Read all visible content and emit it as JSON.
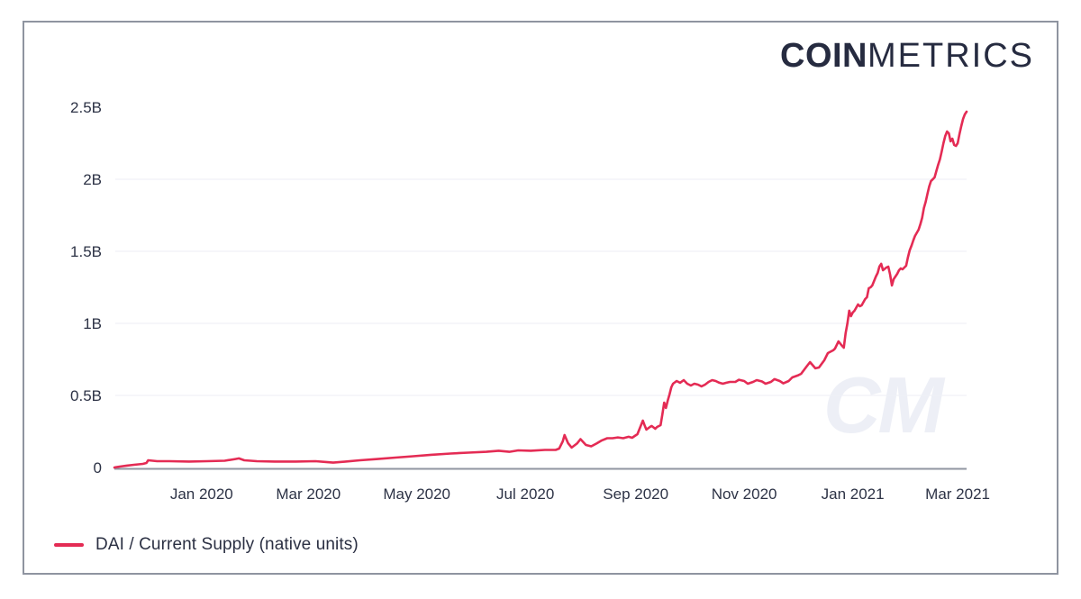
{
  "header": {
    "logo": {
      "coin": "COIN",
      "metrics": "METRICS"
    }
  },
  "watermark": {
    "text": "CM"
  },
  "legend": {
    "items": [
      {
        "label": "DAI / Current Supply (native units)",
        "color": "#e42b54"
      }
    ]
  },
  "colors": {
    "line": "#e42b54",
    "gridline": "#f0f1f6",
    "axis": "#9096a1",
    "tick_text": "#2d3346",
    "logo_text": "#262b40",
    "watermark": "#edeff6",
    "border": "#8f94a0"
  },
  "chart_data": {
    "type": "line",
    "title": "",
    "legend_position": "bottom-left",
    "grid": "horizontal-only",
    "x_axis": {
      "domain": [
        "2019-11-13",
        "2021-03-06"
      ],
      "ticks": [
        {
          "label": "Jan 2020",
          "date": "2020-01-01"
        },
        {
          "label": "Mar 2020",
          "date": "2020-03-01"
        },
        {
          "label": "May 2020",
          "date": "2020-05-01"
        },
        {
          "label": "Jul 2020",
          "date": "2020-07-01"
        },
        {
          "label": "Sep 2020",
          "date": "2020-09-01"
        },
        {
          "label": "Nov 2020",
          "date": "2020-11-01"
        },
        {
          "label": "Jan 2021",
          "date": "2021-01-01"
        },
        {
          "label": "Mar 2021",
          "date": "2021-03-01"
        }
      ]
    },
    "y_axis": {
      "domain": [
        0,
        2.5
      ],
      "unit": "billions of native units",
      "ticks": [
        {
          "label": "0",
          "value": 0,
          "grid": false
        },
        {
          "label": "0.5B",
          "value": 0.5,
          "grid": true
        },
        {
          "label": "1B",
          "value": 1,
          "grid": true
        },
        {
          "label": "1.5B",
          "value": 1.5,
          "grid": true
        },
        {
          "label": "2B",
          "value": 2,
          "grid": true
        },
        {
          "label": "2.5B",
          "value": 2.5,
          "grid": false
        }
      ]
    },
    "series": [
      {
        "name": "DAI / Current Supply (native units)",
        "color": "#e42b54",
        "points": [
          [
            "2019-11-13",
            0
          ],
          [
            "2019-11-16",
            0.006
          ],
          [
            "2019-11-20",
            0.013
          ],
          [
            "2019-11-24",
            0.019
          ],
          [
            "2019-11-29",
            0.025
          ],
          [
            "2019-12-01",
            0.031
          ],
          [
            "2019-12-02",
            0.05
          ],
          [
            "2019-12-07",
            0.044
          ],
          [
            "2019-12-14",
            0.044
          ],
          [
            "2019-12-25",
            0.041
          ],
          [
            "2020-01-04",
            0.044
          ],
          [
            "2020-01-14",
            0.047
          ],
          [
            "2020-01-20",
            0.059
          ],
          [
            "2020-01-22",
            0.063
          ],
          [
            "2020-01-25",
            0.05
          ],
          [
            "2020-02-01",
            0.044
          ],
          [
            "2020-02-11",
            0.041
          ],
          [
            "2020-02-23",
            0.041
          ],
          [
            "2020-03-05",
            0.044
          ],
          [
            "2020-03-11",
            0.038
          ],
          [
            "2020-03-15",
            0.034
          ],
          [
            "2020-03-22",
            0.041
          ],
          [
            "2020-03-30",
            0.05
          ],
          [
            "2020-04-09",
            0.059
          ],
          [
            "2020-04-19",
            0.069
          ],
          [
            "2020-04-29",
            0.078
          ],
          [
            "2020-05-09",
            0.088
          ],
          [
            "2020-05-20",
            0.097
          ],
          [
            "2020-05-30",
            0.103
          ],
          [
            "2020-06-09",
            0.109
          ],
          [
            "2020-06-16",
            0.116
          ],
          [
            "2020-06-22",
            0.109
          ],
          [
            "2020-06-27",
            0.119
          ],
          [
            "2020-07-04",
            0.116
          ],
          [
            "2020-07-12",
            0.122
          ],
          [
            "2020-07-18",
            0.122
          ],
          [
            "2020-07-20",
            0.131
          ],
          [
            "2020-07-22",
            0.181
          ],
          [
            "2020-07-23",
            0.225
          ],
          [
            "2020-07-25",
            0.169
          ],
          [
            "2020-07-27",
            0.138
          ],
          [
            "2020-07-30",
            0.166
          ],
          [
            "2020-08-01",
            0.197
          ],
          [
            "2020-08-04",
            0.156
          ],
          [
            "2020-08-07",
            0.147
          ],
          [
            "2020-08-10",
            0.166
          ],
          [
            "2020-08-13",
            0.188
          ],
          [
            "2020-08-16",
            0.203
          ],
          [
            "2020-08-19",
            0.203
          ],
          [
            "2020-08-22",
            0.209
          ],
          [
            "2020-08-25",
            0.203
          ],
          [
            "2020-08-28",
            0.213
          ],
          [
            "2020-08-30",
            0.206
          ],
          [
            "2020-09-02",
            0.231
          ],
          [
            "2020-09-05",
            0.325
          ],
          [
            "2020-09-06",
            0.294
          ],
          [
            "2020-09-07",
            0.263
          ],
          [
            "2020-09-09",
            0.281
          ],
          [
            "2020-09-10",
            0.288
          ],
          [
            "2020-09-12",
            0.269
          ],
          [
            "2020-09-13",
            0.281
          ],
          [
            "2020-09-15",
            0.294
          ],
          [
            "2020-09-16",
            0.369
          ],
          [
            "2020-09-17",
            0.45
          ],
          [
            "2020-09-18",
            0.413
          ],
          [
            "2020-09-19",
            0.463
          ],
          [
            "2020-09-20",
            0.506
          ],
          [
            "2020-09-21",
            0.556
          ],
          [
            "2020-09-22",
            0.581
          ],
          [
            "2020-09-24",
            0.6
          ],
          [
            "2020-09-26",
            0.588
          ],
          [
            "2020-09-28",
            0.606
          ],
          [
            "2020-09-30",
            0.581
          ],
          [
            "2020-10-02",
            0.569
          ],
          [
            "2020-10-04",
            0.581
          ],
          [
            "2020-10-06",
            0.575
          ],
          [
            "2020-10-08",
            0.563
          ],
          [
            "2020-10-10",
            0.575
          ],
          [
            "2020-10-12",
            0.594
          ],
          [
            "2020-10-14",
            0.606
          ],
          [
            "2020-10-16",
            0.6
          ],
          [
            "2020-10-18",
            0.588
          ],
          [
            "2020-10-20",
            0.581
          ],
          [
            "2020-10-22",
            0.588
          ],
          [
            "2020-10-24",
            0.594
          ],
          [
            "2020-10-27",
            0.594
          ],
          [
            "2020-10-29",
            0.609
          ],
          [
            "2020-11-01",
            0.6
          ],
          [
            "2020-11-03",
            0.581
          ],
          [
            "2020-11-06",
            0.594
          ],
          [
            "2020-11-08",
            0.606
          ],
          [
            "2020-11-11",
            0.597
          ],
          [
            "2020-11-13",
            0.581
          ],
          [
            "2020-11-16",
            0.594
          ],
          [
            "2020-11-18",
            0.613
          ],
          [
            "2020-11-21",
            0.6
          ],
          [
            "2020-11-23",
            0.584
          ],
          [
            "2020-11-26",
            0.6
          ],
          [
            "2020-11-28",
            0.625
          ],
          [
            "2020-12-01",
            0.638
          ],
          [
            "2020-12-03",
            0.65
          ],
          [
            "2020-12-06",
            0.7
          ],
          [
            "2020-12-08",
            0.731
          ],
          [
            "2020-12-11",
            0.688
          ],
          [
            "2020-12-13",
            0.694
          ],
          [
            "2020-12-16",
            0.744
          ],
          [
            "2020-12-18",
            0.794
          ],
          [
            "2020-12-21",
            0.813
          ],
          [
            "2020-12-22",
            0.825
          ],
          [
            "2020-12-24",
            0.875
          ],
          [
            "2020-12-26",
            0.844
          ],
          [
            "2020-12-27",
            0.831
          ],
          [
            "2020-12-28",
            0.931
          ],
          [
            "2020-12-29",
            1.0
          ],
          [
            "2020-12-30",
            1.088
          ],
          [
            "2020-12-31",
            1.05
          ],
          [
            "2021-01-01",
            1.075
          ],
          [
            "2021-01-02",
            1.088
          ],
          [
            "2021-01-04",
            1.131
          ],
          [
            "2021-01-05",
            1.119
          ],
          [
            "2021-01-06",
            1.125
          ],
          [
            "2021-01-08",
            1.169
          ],
          [
            "2021-01-09",
            1.181
          ],
          [
            "2021-01-10",
            1.244
          ],
          [
            "2021-01-11",
            1.25
          ],
          [
            "2021-01-12",
            1.263
          ],
          [
            "2021-01-14",
            1.325
          ],
          [
            "2021-01-15",
            1.35
          ],
          [
            "2021-01-16",
            1.394
          ],
          [
            "2021-01-17",
            1.413
          ],
          [
            "2021-01-18",
            1.369
          ],
          [
            "2021-01-20",
            1.388
          ],
          [
            "2021-01-21",
            1.394
          ],
          [
            "2021-01-22",
            1.338
          ],
          [
            "2021-01-23",
            1.263
          ],
          [
            "2021-01-24",
            1.306
          ],
          [
            "2021-01-26",
            1.344
          ],
          [
            "2021-01-27",
            1.369
          ],
          [
            "2021-01-28",
            1.381
          ],
          [
            "2021-01-29",
            1.375
          ],
          [
            "2021-01-31",
            1.4
          ],
          [
            "2021-02-01",
            1.456
          ],
          [
            "2021-02-02",
            1.506
          ],
          [
            "2021-02-03",
            1.538
          ],
          [
            "2021-02-04",
            1.575
          ],
          [
            "2021-02-05",
            1.606
          ],
          [
            "2021-02-07",
            1.65
          ],
          [
            "2021-02-08",
            1.688
          ],
          [
            "2021-02-09",
            1.731
          ],
          [
            "2021-02-10",
            1.8
          ],
          [
            "2021-02-11",
            1.844
          ],
          [
            "2021-02-12",
            1.9
          ],
          [
            "2021-02-13",
            1.95
          ],
          [
            "2021-02-14",
            1.988
          ],
          [
            "2021-02-15",
            2.0
          ],
          [
            "2021-02-16",
            2.013
          ],
          [
            "2021-02-17",
            2.056
          ],
          [
            "2021-02-18",
            2.1
          ],
          [
            "2021-02-19",
            2.138
          ],
          [
            "2021-02-20",
            2.194
          ],
          [
            "2021-02-21",
            2.25
          ],
          [
            "2021-02-22",
            2.3
          ],
          [
            "2021-02-23",
            2.331
          ],
          [
            "2021-02-24",
            2.319
          ],
          [
            "2021-02-25",
            2.263
          ],
          [
            "2021-02-26",
            2.281
          ],
          [
            "2021-02-27",
            2.238
          ],
          [
            "2021-02-28",
            2.231
          ],
          [
            "2021-03-01",
            2.25
          ],
          [
            "2021-03-02",
            2.313
          ],
          [
            "2021-03-03",
            2.369
          ],
          [
            "2021-03-04",
            2.419
          ],
          [
            "2021-03-05",
            2.45
          ],
          [
            "2021-03-06",
            2.469
          ]
        ]
      }
    ]
  }
}
